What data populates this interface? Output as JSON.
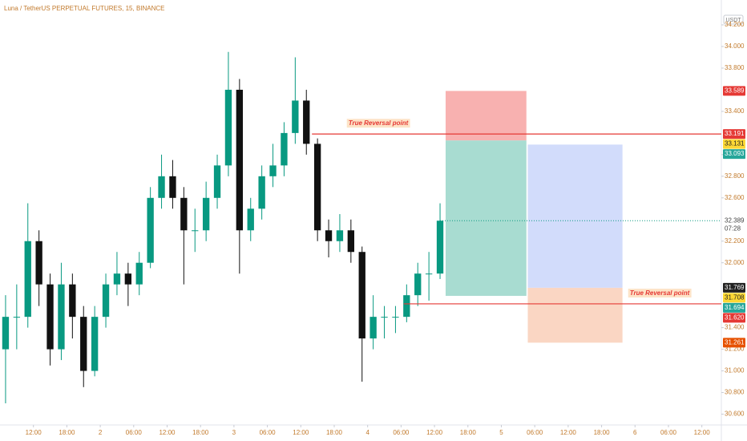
{
  "chart_data": {
    "type": "candlestick",
    "title": "Luna / TetherUS PERPETUAL FUTURES, 15, BINANCE",
    "unit": "USDT",
    "xlim": [
      0,
      129.5
    ],
    "xticks": [
      {
        "value": 6,
        "label": "12:00"
      },
      {
        "value": 12,
        "label": "18:00"
      },
      {
        "value": 18,
        "label": "2"
      },
      {
        "value": 24,
        "label": "06:00"
      },
      {
        "value": 30,
        "label": "12:00"
      },
      {
        "value": 36,
        "label": "18:00"
      },
      {
        "value": 42,
        "label": "3"
      },
      {
        "value": 48,
        "label": "06:00"
      },
      {
        "value": 54,
        "label": "12:00"
      },
      {
        "value": 60,
        "label": "18:00"
      },
      {
        "value": 66,
        "label": "4"
      },
      {
        "value": 72,
        "label": "06:00"
      },
      {
        "value": 78,
        "label": "12:00"
      },
      {
        "value": 84,
        "label": "18:00"
      },
      {
        "value": 90,
        "label": "5"
      },
      {
        "value": 96,
        "label": "06:00"
      },
      {
        "value": 102,
        "label": "12:00"
      },
      {
        "value": 108,
        "label": "18:00"
      },
      {
        "value": 114,
        "label": "6"
      },
      {
        "value": 120,
        "label": "06:00"
      },
      {
        "value": 126,
        "label": "12:00"
      }
    ],
    "ylim": [
      30.5,
      34.43
    ],
    "yticks": [
      {
        "value": 34.2,
        "label": "34.200"
      },
      {
        "value": 34.0,
        "label": "34.000"
      },
      {
        "value": 33.8,
        "label": "33.800"
      },
      {
        "value": 33.4,
        "label": "33.400"
      },
      {
        "value": 33.0,
        "label": "33.000"
      },
      {
        "value": 32.8,
        "label": "32.800"
      },
      {
        "value": 32.6,
        "label": "32.600"
      },
      {
        "value": 32.2,
        "label": "32.200"
      },
      {
        "value": 32.0,
        "label": "32.000"
      },
      {
        "value": 31.4,
        "label": "31.400"
      },
      {
        "value": 31.2,
        "label": "31.200"
      },
      {
        "value": 31.0,
        "label": "31.000"
      },
      {
        "value": 30.8,
        "label": "30.800"
      },
      {
        "value": 30.6,
        "label": "30.600"
      }
    ],
    "up_color": "#089981",
    "down_color": "#111111",
    "x": [
      1,
      3,
      5,
      7,
      9,
      11,
      13,
      15,
      17,
      19,
      21,
      23,
      25,
      27,
      29,
      31,
      33,
      35,
      37,
      39,
      41,
      43,
      45,
      47,
      49,
      51,
      53,
      55,
      57,
      59,
      61,
      63,
      65,
      67,
      69,
      71,
      73,
      75,
      77,
      79
    ],
    "open": [
      31.2,
      31.5,
      31.5,
      32.2,
      31.8,
      31.2,
      31.8,
      31.5,
      31.0,
      31.5,
      31.8,
      31.9,
      31.8,
      32.0,
      32.6,
      32.8,
      32.6,
      32.3,
      32.3,
      32.6,
      32.9,
      33.6,
      32.3,
      32.5,
      32.8,
      32.9,
      33.2,
      33.5,
      33.1,
      32.3,
      32.2,
      32.3,
      32.1,
      31.3,
      31.5,
      31.5,
      31.5,
      31.7,
      31.9,
      31.9
    ],
    "high": [
      31.7,
      31.8,
      32.55,
      32.3,
      31.9,
      32.0,
      31.9,
      31.6,
      31.6,
      31.9,
      32.1,
      32.0,
      32.1,
      32.7,
      33.0,
      32.95,
      32.7,
      32.5,
      32.75,
      33.0,
      33.95,
      33.7,
      32.6,
      32.9,
      33.1,
      33.3,
      33.9,
      33.6,
      33.15,
      32.4,
      32.45,
      32.4,
      32.15,
      31.7,
      31.6,
      31.6,
      31.8,
      32.0,
      32.1,
      32.55
    ],
    "low": [
      30.7,
      31.2,
      31.4,
      31.6,
      31.05,
      31.1,
      31.3,
      30.85,
      30.95,
      31.4,
      31.7,
      31.6,
      31.7,
      31.95,
      32.5,
      32.5,
      31.8,
      32.1,
      32.2,
      32.5,
      32.8,
      31.9,
      32.2,
      32.4,
      32.7,
      32.8,
      33.1,
      33.0,
      32.2,
      32.05,
      32.1,
      32.0,
      30.9,
      31.2,
      31.3,
      31.35,
      31.45,
      31.6,
      31.65,
      31.85
    ],
    "close": [
      31.5,
      31.5,
      32.2,
      31.8,
      31.2,
      31.8,
      31.5,
      31.0,
      31.5,
      31.8,
      31.9,
      31.8,
      32.0,
      32.6,
      32.8,
      32.6,
      32.3,
      32.3,
      32.6,
      32.9,
      33.6,
      32.3,
      32.5,
      32.8,
      32.9,
      33.2,
      33.5,
      33.1,
      32.3,
      32.2,
      32.3,
      32.1,
      31.3,
      31.5,
      31.5,
      31.5,
      31.7,
      31.9,
      31.9,
      32.389
    ],
    "positions": [
      {
        "x": [
          80,
          94.5
        ],
        "entry": 33.131,
        "stop": 33.589,
        "target": 31.694,
        "stop_color": "#f7a9a7",
        "target_color": "#9fd8cc"
      },
      {
        "x": [
          94.75,
          111.75
        ],
        "entry": 31.769,
        "stop": 31.261,
        "target": 33.093,
        "stop_color": "#f9d2bd",
        "target_color": "#cdd8fb"
      }
    ],
    "lines": [
      {
        "value": 33.191,
        "from": 56,
        "label": "True Reversal point",
        "color": "#e53935"
      },
      {
        "value": 31.62,
        "from": 72.5,
        "label": "True Reversal point",
        "color": "#e53935"
      }
    ],
    "price_labels": [
      {
        "value": 33.589,
        "label": "33.589",
        "color": "#e53935"
      },
      {
        "value": 33.191,
        "label": "33.191",
        "color": "#e53935"
      },
      {
        "value": 33.131,
        "label": "33.131",
        "color": "#fdd835"
      },
      {
        "value": 33.093,
        "label": "33.093",
        "color": "#26a69a"
      },
      {
        "value": 31.769,
        "label": "31.769",
        "color": "#222222"
      },
      {
        "value": 31.708,
        "label": "31.708",
        "color": "#fdd835"
      },
      {
        "value": 31.694,
        "label": "31.694",
        "color": "#26a69a"
      },
      {
        "value": 31.62,
        "label": "31.620",
        "color": "#e53935"
      },
      {
        "value": 31.261,
        "label": "31.261",
        "color": "#e65100"
      }
    ],
    "last_price": {
      "value": 32.389,
      "label": "32.389",
      "countdown": "07:28"
    }
  }
}
